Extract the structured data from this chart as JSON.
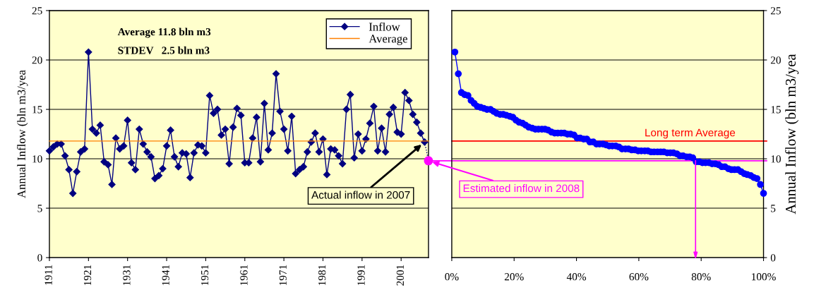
{
  "chart_data": [
    {
      "type": "line",
      "x": [
        1911,
        1912,
        1913,
        1914,
        1915,
        1916,
        1917,
        1918,
        1919,
        1920,
        1921,
        1922,
        1923,
        1924,
        1925,
        1926,
        1927,
        1928,
        1929,
        1930,
        1931,
        1932,
        1933,
        1934,
        1935,
        1936,
        1937,
        1938,
        1939,
        1940,
        1941,
        1942,
        1943,
        1944,
        1945,
        1946,
        1947,
        1948,
        1949,
        1950,
        1951,
        1952,
        1953,
        1954,
        1955,
        1956,
        1957,
        1958,
        1959,
        1960,
        1961,
        1962,
        1963,
        1964,
        1965,
        1966,
        1967,
        1968,
        1969,
        1970,
        1971,
        1972,
        1973,
        1974,
        1975,
        1976,
        1977,
        1978,
        1979,
        1980,
        1981,
        1982,
        1983,
        1984,
        1985,
        1986,
        1987,
        1988,
        1989,
        1990,
        1991,
        1992,
        1993,
        1994,
        1995,
        1996,
        1997,
        1998,
        1999,
        2000,
        2001,
        2002,
        2003,
        2004,
        2005,
        2006,
        2007
      ],
      "series": [
        {
          "name": "Inflow",
          "color": "#000080",
          "marker": "diamond",
          "values": [
            10.8,
            11.2,
            11.5,
            11.5,
            10.3,
            8.9,
            6.5,
            8.7,
            10.7,
            11.0,
            20.8,
            13.0,
            12.6,
            13.4,
            9.7,
            9.4,
            7.4,
            12.1,
            11.0,
            11.3,
            13.9,
            9.6,
            8.9,
            13.0,
            11.5,
            10.7,
            10.2,
            8.0,
            8.3,
            9.0,
            11.3,
            12.9,
            10.2,
            9.2,
            10.6,
            10.5,
            8.1,
            10.6,
            11.4,
            11.3,
            10.6,
            16.4,
            14.6,
            15.0,
            12.4,
            13.0,
            9.5,
            13.2,
            15.1,
            14.4,
            9.6,
            9.6,
            12.1,
            14.2,
            9.7,
            15.6,
            10.9,
            12.6,
            18.6,
            14.8,
            13.0,
            10.8,
            14.3,
            8.5,
            8.9,
            9.2,
            10.7,
            11.7,
            12.6,
            10.7,
            12.0,
            8.4,
            11.0,
            10.9,
            10.3,
            9.5,
            15.0,
            16.5,
            10.1,
            12.5,
            10.8,
            12.0,
            13.6,
            15.3,
            10.8,
            13.1,
            10.7,
            14.5,
            15.2,
            12.7,
            12.5,
            16.7,
            15.9,
            14.5,
            13.7,
            12.6,
            11.7
          ]
        },
        {
          "name": "Average",
          "color": "#ff8000",
          "x": [
            1911,
            2008
          ],
          "values": [
            11.8,
            11.8
          ]
        },
        {
          "color": "#000080",
          "x": [
            2007,
            2008
          ],
          "values": [
            11.7,
            9.8
          ],
          "line_style": "dotted"
        },
        {
          "type": "scatter",
          "color": "#ff00ff",
          "x": [
            2008
          ],
          "values": [
            9.8
          ],
          "marker": "circle"
        }
      ],
      "xlim": [
        1911,
        2008
      ],
      "xticks": [
        1911,
        1921,
        1931,
        1941,
        1951,
        1961,
        1971,
        1981,
        1991,
        2001
      ],
      "ylim": [
        0,
        25
      ],
      "yticks": [
        0,
        5,
        10,
        15,
        20,
        25
      ],
      "ylabel": "Annual Inflow (bln m3/yea",
      "grid": "y",
      "legend": "top right",
      "annotations": [
        "Average 11.8 bln m3",
        "STDEV   2.5 bln m3",
        {
          "text": "Actual inflow in 2007",
          "x": 2007,
          "y": 11.7
        },
        {
          "text": "Estimated inflow in 2008",
          "x": 2008,
          "y": 9.8
        }
      ]
    },
    {
      "type": "line",
      "x": [
        1.0,
        2.1,
        3.1,
        4.1,
        5.2,
        6.2,
        7.2,
        8.2,
        9.3,
        10.3,
        11.3,
        12.4,
        13.4,
        14.4,
        15.5,
        16.5,
        17.5,
        18.6,
        19.6,
        20.6,
        21.6,
        22.7,
        23.7,
        24.7,
        25.8,
        26.8,
        27.8,
        28.9,
        29.9,
        30.9,
        32.0,
        33.0,
        34.0,
        35.1,
        36.1,
        37.1,
        38.1,
        39.2,
        40.2,
        41.2,
        42.3,
        43.3,
        44.3,
        45.4,
        46.4,
        47.4,
        48.5,
        49.5,
        50.5,
        51.5,
        52.6,
        53.6,
        54.6,
        55.7,
        56.7,
        57.7,
        58.8,
        59.8,
        60.8,
        61.9,
        62.9,
        63.9,
        64.9,
        66.0,
        67.0,
        68.0,
        69.1,
        70.1,
        71.1,
        72.2,
        73.2,
        74.2,
        75.3,
        76.3,
        77.3,
        78.4,
        79.4,
        80.4,
        81.4,
        82.5,
        83.5,
        84.5,
        85.6,
        86.6,
        87.6,
        88.7,
        89.7,
        90.7,
        91.8,
        92.8,
        93.8,
        94.8,
        95.9,
        96.9,
        97.9,
        99.0,
        100.0
      ],
      "series": [
        {
          "color": "#0000ff",
          "values": [
            20.8,
            18.6,
            16.7,
            16.5,
            16.4,
            15.9,
            15.6,
            15.3,
            15.2,
            15.1,
            15.0,
            15.0,
            14.8,
            14.6,
            14.5,
            14.5,
            14.4,
            14.3,
            14.2,
            13.9,
            13.7,
            13.6,
            13.4,
            13.2,
            13.1,
            13.0,
            13.0,
            13.0,
            13.0,
            12.9,
            12.7,
            12.6,
            12.6,
            12.6,
            12.6,
            12.5,
            12.5,
            12.4,
            12.1,
            12.1,
            12.0,
            12.0,
            11.7,
            11.7,
            11.5,
            11.5,
            11.5,
            11.4,
            11.3,
            11.3,
            11.3,
            11.2,
            11.0,
            11.0,
            11.0,
            10.9,
            10.9,
            10.8,
            10.8,
            10.8,
            10.8,
            10.7,
            10.7,
            10.7,
            10.7,
            10.7,
            10.6,
            10.6,
            10.6,
            10.5,
            10.3,
            10.3,
            10.2,
            10.2,
            10.1,
            9.7,
            9.7,
            9.6,
            9.6,
            9.6,
            9.5,
            9.5,
            9.4,
            9.2,
            9.2,
            9.0,
            8.9,
            8.9,
            8.9,
            8.7,
            8.5,
            8.4,
            8.3,
            8.1,
            8.0,
            7.4,
            6.5
          ]
        }
      ],
      "marker": "circle",
      "xlim": [
        0,
        100
      ],
      "xticks": [
        {
          "value": 0,
          "label": "0%"
        },
        {
          "value": 20,
          "label": "20%"
        },
        {
          "value": 40,
          "label": "40%"
        },
        {
          "value": 60,
          "label": "60%"
        },
        {
          "value": 80,
          "label": "80%"
        },
        {
          "value": 100,
          "label": "100%"
        }
      ],
      "ylim": [
        0,
        25
      ],
      "yticks": [
        0,
        5,
        10,
        15,
        20,
        25
      ],
      "ylabel": "Annual Inflow (bln m3/yea",
      "grid": "y",
      "ref_lines": [
        {
          "axis": "y",
          "value": 11.8,
          "label": "Long term Average",
          "color": "#ff0000"
        },
        {
          "axis": "y",
          "value": 9.8,
          "color": "#ff00ff"
        },
        {
          "axis": "x",
          "value": 78.2,
          "color": "#ff00ff"
        }
      ]
    }
  ]
}
